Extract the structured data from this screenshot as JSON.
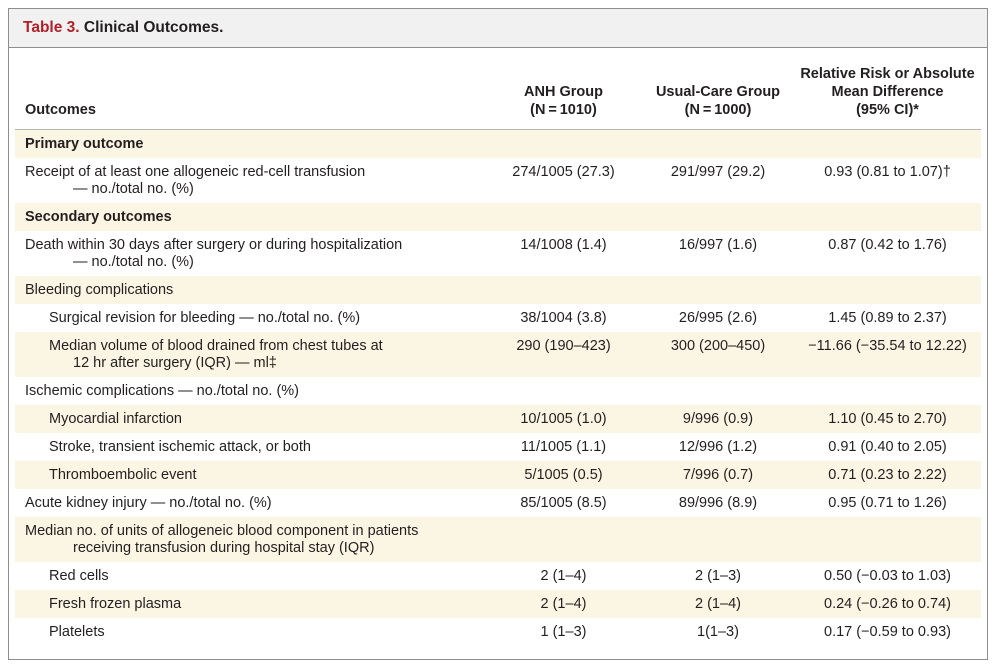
{
  "table": {
    "label": "Table 3.",
    "title": "Clinical Outcomes.",
    "headers": {
      "outcomes": "Outcomes",
      "anh": [
        "ANH Group",
        "(N = 1010)"
      ],
      "usual": [
        "Usual-Care Group",
        "(N = 1000)"
      ],
      "rr": [
        "Relative Risk or Absolute",
        "Mean Difference",
        "(95% CI)*"
      ]
    },
    "rows": [
      {
        "label": [
          "Primary outcome"
        ],
        "anh": "",
        "usual": "",
        "rr": ""
      },
      {
        "label": [
          "Receipt of at least one allogeneic red-cell transfusion",
          "— no./total no. (%)"
        ],
        "anh": "274/1005 (27.3)",
        "usual": "291/997 (29.2)",
        "rr": "0.93 (0.81 to 1.07)†"
      },
      {
        "label": [
          "Secondary outcomes"
        ],
        "anh": "",
        "usual": "",
        "rr": ""
      },
      {
        "label": [
          "Death within 30 days after surgery or during hospitalization",
          "— no./total no. (%)"
        ],
        "anh": "14/1008 (1.4)",
        "usual": "16/997 (1.6)",
        "rr": "0.87 (0.42 to 1.76)"
      },
      {
        "label": [
          "Bleeding complications"
        ],
        "anh": "",
        "usual": "",
        "rr": ""
      },
      {
        "label": [
          "Surgical revision for bleeding — no./total no. (%)"
        ],
        "anh": "38/1004 (3.8)",
        "usual": "26/995 (2.6)",
        "rr": "1.45 (0.89 to 2.37)"
      },
      {
        "label": [
          "Median volume of blood drained from chest tubes at",
          "12 hr after surgery (IQR) — ml‡"
        ],
        "anh": "290 (190–423)",
        "usual": "300 (200–450)",
        "rr": "−11.66 (−35.54 to 12.22)"
      },
      {
        "label": [
          "Ischemic complications — no./total no. (%)"
        ],
        "anh": "",
        "usual": "",
        "rr": ""
      },
      {
        "label": [
          "Myocardial infarction"
        ],
        "anh": "10/1005 (1.0)",
        "usual": "9/996 (0.9)",
        "rr": "1.10 (0.45 to 2.70)"
      },
      {
        "label": [
          "Stroke, transient ischemic attack, or both"
        ],
        "anh": "11/1005 (1.1)",
        "usual": "12/996 (1.2)",
        "rr": "0.91 (0.40 to 2.05)"
      },
      {
        "label": [
          "Thromboembolic event"
        ],
        "anh": "5/1005 (0.5)",
        "usual": "7/996 (0.7)",
        "rr": "0.71 (0.23 to 2.22)"
      },
      {
        "label": [
          "Acute kidney injury — no./total no. (%)"
        ],
        "anh": "85/1005 (8.5)",
        "usual": "89/996 (8.9)",
        "rr": "0.95 (0.71 to 1.26)"
      },
      {
        "label": [
          "Median no. of units of allogeneic blood component in patients",
          "receiving transfusion during hospital stay (IQR)"
        ],
        "anh": "",
        "usual": "",
        "rr": ""
      },
      {
        "label": [
          "Red cells"
        ],
        "anh": "2 (1–4)",
        "usual": "2 (1–3)",
        "rr": "0.50 (−0.03 to 1.03)"
      },
      {
        "label": [
          "Fresh frozen plasma"
        ],
        "anh": "2 (1–4)",
        "usual": "2 (1–4)",
        "rr": "0.24 (−0.26 to 0.74)"
      },
      {
        "label": [
          "Platelets"
        ],
        "anh": "1 (1–3)",
        "usual": "1(1–3)",
        "rr": "0.17 (−0.59 to 0.93)"
      }
    ]
  },
  "colors": {
    "title_label": "#b2202a",
    "title_bar": "#f1f1f1",
    "row_shade": "#fbf5e3",
    "border": "#8e8e8e"
  }
}
